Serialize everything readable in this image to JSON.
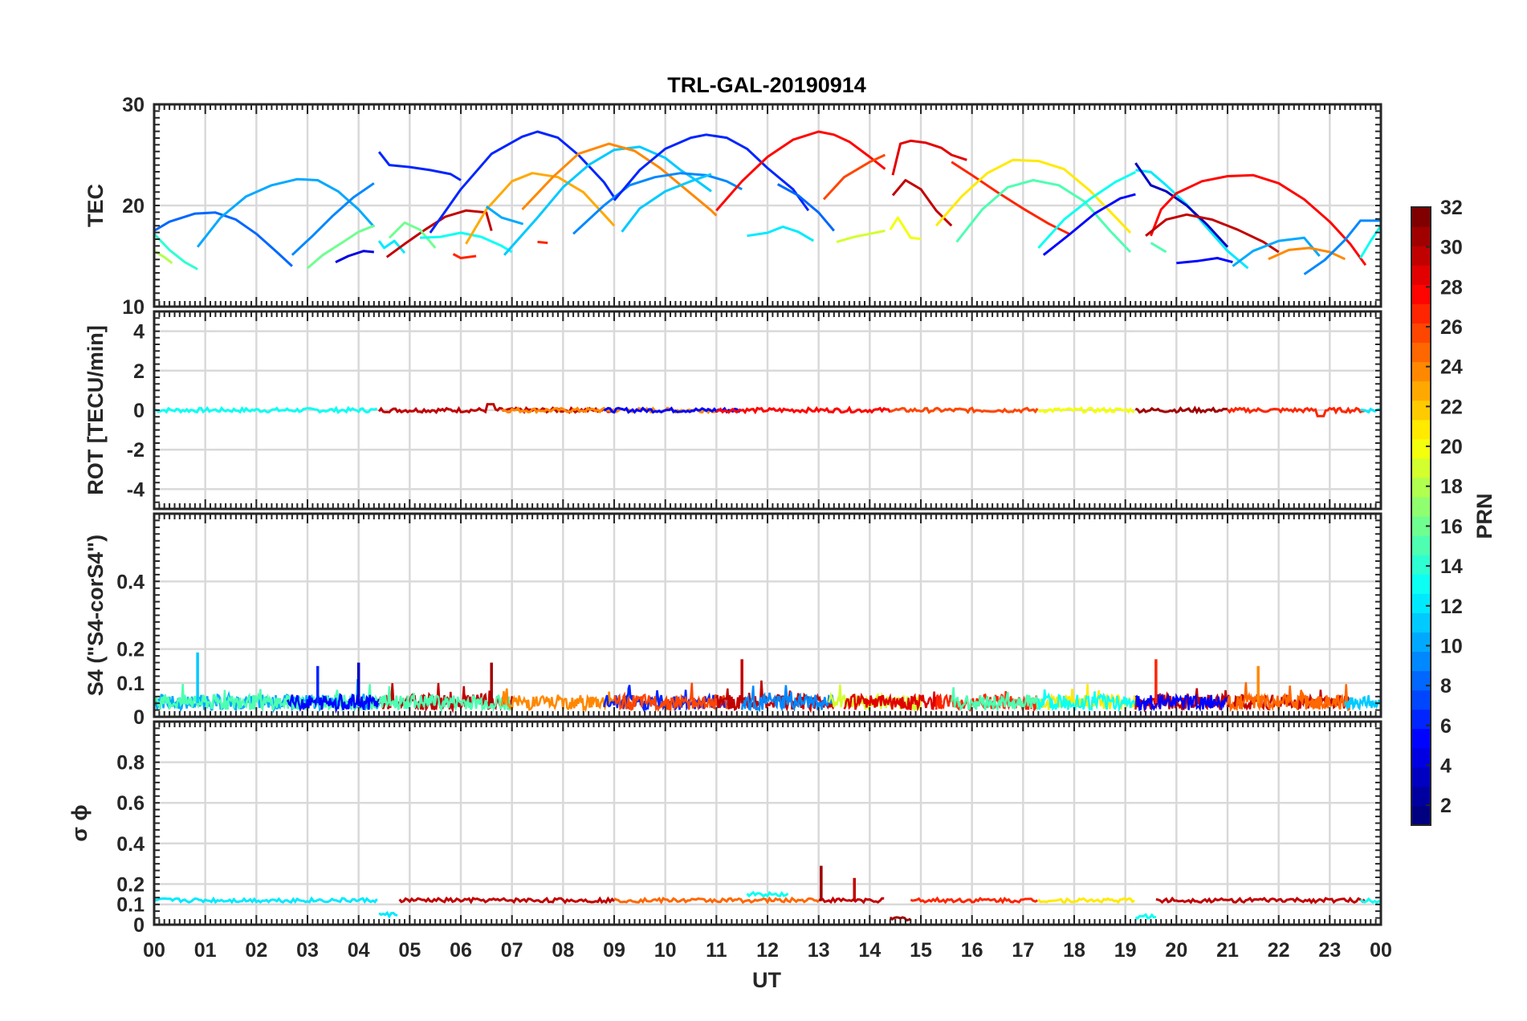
{
  "chart_data": {
    "title": "TRL-GAL-20190914",
    "type": "line",
    "xlabel": "UT",
    "x_ticks": [
      "00",
      "01",
      "02",
      "03",
      "04",
      "05",
      "06",
      "07",
      "08",
      "09",
      "10",
      "11",
      "12",
      "13",
      "14",
      "15",
      "16",
      "17",
      "18",
      "19",
      "20",
      "21",
      "22",
      "23",
      "00"
    ],
    "xlim": [
      0,
      24
    ],
    "colorbar": {
      "label": "PRN",
      "range": [
        1,
        32
      ],
      "ticks": [
        "2",
        "4",
        "6",
        "8",
        "10",
        "12",
        "14",
        "16",
        "18",
        "20",
        "22",
        "24",
        "26",
        "28",
        "30",
        "32"
      ]
    },
    "panels": [
      {
        "id": "tec",
        "ylabel": "TEC",
        "ylim": [
          10,
          30
        ],
        "yticks": [
          "10",
          "20",
          "30"
        ],
        "series": [
          {
            "prn": 8,
            "x": [
              0.0,
              0.3,
              0.8,
              1.2,
              1.6,
              2.0,
              2.4,
              2.7
            ],
            "y": [
              17.5,
              18.4,
              19.2,
              19.3,
              18.6,
              17.2,
              15.4,
              14.0
            ]
          },
          {
            "prn": 18,
            "x": [
              0.0,
              0.2,
              0.35
            ],
            "y": [
              15.5,
              14.9,
              14.3
            ]
          },
          {
            "prn": 14,
            "x": [
              0.0,
              0.3,
              0.6,
              0.85
            ],
            "y": [
              17.2,
              15.6,
              14.4,
              13.7
            ]
          },
          {
            "prn": 10,
            "x": [
              0.85,
              1.3,
              1.8,
              2.3,
              2.8,
              3.2,
              3.6,
              4.0,
              4.3
            ],
            "y": [
              15.9,
              18.8,
              20.9,
              22.0,
              22.6,
              22.5,
              21.4,
              19.6,
              17.9
            ]
          },
          {
            "prn": 9,
            "x": [
              2.7,
              3.1,
              3.5,
              3.9,
              4.3
            ],
            "y": [
              15.1,
              17.0,
              19.0,
              20.8,
              22.2
            ]
          },
          {
            "prn": 16,
            "x": [
              3.0,
              3.3,
              3.7,
              4.0,
              4.3
            ],
            "y": [
              13.8,
              15.1,
              16.4,
              17.4,
              18.0
            ]
          },
          {
            "prn": 4,
            "x": [
              3.55,
              3.8,
              4.1,
              4.3
            ],
            "y": [
              14.4,
              15.0,
              15.5,
              15.4
            ]
          },
          {
            "prn": 6,
            "x": [
              4.4,
              4.6,
              5.0,
              5.4,
              5.8,
              6.0
            ],
            "y": [
              25.3,
              24.0,
              23.8,
              23.5,
              23.1,
              22.5
            ]
          },
          {
            "prn": 12,
            "x": [
              4.4,
              4.5,
              4.7,
              4.9
            ],
            "y": [
              16.5,
              15.8,
              16.5,
              15.3
            ]
          },
          {
            "prn": 30,
            "x": [
              4.55,
              4.9,
              5.3,
              5.7,
              6.1,
              6.5,
              6.6
            ],
            "y": [
              14.9,
              16.2,
              17.6,
              18.9,
              19.5,
              19.3,
              17.5
            ]
          },
          {
            "prn": 16,
            "x": [
              4.6,
              4.9,
              5.2,
              5.5
            ],
            "y": [
              16.8,
              18.3,
              17.6,
              15.8
            ]
          },
          {
            "prn": 13,
            "x": [
              5.2,
              5.6,
              6.0,
              6.4,
              6.8,
              7.0
            ],
            "y": [
              16.8,
              16.9,
              17.3,
              16.9,
              16.0,
              15.4
            ]
          },
          {
            "prn": 6,
            "x": [
              5.4,
              6.0,
              6.6,
              7.2,
              7.5,
              7.9,
              8.3,
              8.8,
              9.0
            ],
            "y": [
              17.3,
              21.6,
              25.1,
              26.8,
              27.3,
              26.7,
              25.0,
              22.3,
              20.8
            ]
          },
          {
            "prn": 27,
            "x": [
              5.85,
              6.0,
              6.3
            ],
            "y": [
              15.2,
              14.8,
              15.0
            ]
          },
          {
            "prn": 23,
            "x": [
              6.1,
              6.5,
              7.0,
              7.4,
              7.9,
              8.4,
              8.8,
              9.0
            ],
            "y": [
              16.2,
              19.6,
              22.4,
              23.2,
              22.8,
              21.3,
              19.1,
              18.0
            ]
          },
          {
            "prn": 10,
            "x": [
              6.5,
              6.8,
              7.2,
              7.0
            ],
            "y": [
              19.9,
              18.8,
              18.2,
              18.5
            ]
          },
          {
            "prn": 11,
            "x": [
              6.85,
              7.5,
              8.0,
              8.5,
              9.0,
              9.5,
              10.0,
              10.3,
              10.6,
              10.9
            ],
            "y": [
              15.1,
              18.8,
              21.8,
              24.0,
              25.5,
              25.8,
              24.7,
              23.5,
              22.5,
              21.4
            ]
          },
          {
            "prn": 27,
            "x": [
              7.5,
              7.7
            ],
            "y": [
              16.4,
              16.3
            ]
          },
          {
            "prn": 24,
            "x": [
              7.2,
              7.8,
              8.3,
              8.9,
              9.4,
              9.9,
              10.4,
              10.9,
              11.0
            ],
            "y": [
              19.6,
              22.8,
              25.1,
              26.1,
              25.4,
              23.7,
              21.6,
              19.5,
              19.0
            ]
          },
          {
            "prn": 9,
            "x": [
              8.2,
              8.8,
              9.3,
              9.8,
              10.3,
              10.8,
              11.2,
              11.5
            ],
            "y": [
              17.2,
              20.0,
              22.0,
              22.8,
              23.2,
              23.0,
              22.4,
              21.6
            ]
          },
          {
            "prn": 6,
            "x": [
              9.0,
              9.5,
              10.0,
              10.5,
              10.8,
              11.2,
              11.6,
              12.0,
              12.5,
              12.8
            ],
            "y": [
              20.5,
              23.5,
              25.6,
              26.7,
              27.0,
              26.7,
              25.6,
              23.7,
              21.6,
              19.5
            ]
          },
          {
            "prn": 11,
            "x": [
              9.15,
              9.5,
              10.0,
              10.5,
              10.9
            ],
            "y": [
              17.4,
              19.7,
              21.4,
              22.4,
              23.1
            ]
          },
          {
            "prn": 28,
            "x": [
              11.0,
              11.5,
              12.0,
              12.5,
              13.0,
              13.3,
              13.6,
              14.0,
              14.3
            ],
            "y": [
              19.5,
              22.4,
              24.8,
              26.5,
              27.3,
              27.0,
              26.3,
              24.8,
              23.6
            ]
          },
          {
            "prn": 8,
            "x": [
              12.2,
              12.6,
              13.0,
              13.3
            ],
            "y": [
              22.1,
              21.0,
              19.3,
              17.5
            ]
          },
          {
            "prn": 12,
            "x": [
              11.6,
              12.0,
              12.3,
              12.6,
              12.9
            ],
            "y": [
              17.0,
              17.3,
              17.9,
              17.4,
              16.5
            ]
          },
          {
            "prn": 26,
            "x": [
              13.1,
              13.5,
              14.0,
              14.3
            ],
            "y": [
              20.6,
              22.8,
              24.3,
              25.0
            ]
          },
          {
            "prn": 19,
            "x": [
              13.35,
              13.7,
              14.0,
              14.3
            ],
            "y": [
              16.4,
              16.9,
              17.2,
              17.5
            ]
          },
          {
            "prn": 20,
            "x": [
              14.4,
              14.55,
              14.8,
              15.0
            ],
            "y": [
              17.6,
              18.8,
              16.8,
              16.7
            ]
          },
          {
            "prn": 29,
            "x": [
              14.45,
              14.6,
              14.8,
              15.1,
              15.4,
              15.6,
              15.9
            ],
            "y": [
              23.0,
              26.1,
              26.4,
              26.2,
              25.7,
              25.0,
              24.5
            ]
          },
          {
            "prn": 30,
            "x": [
              14.45,
              14.7,
              15.0,
              15.3,
              15.6
            ],
            "y": [
              21.0,
              22.5,
              21.6,
              19.5,
              18.0
            ]
          },
          {
            "prn": 27,
            "x": [
              15.6,
              16.0,
              16.5,
              17.0,
              17.5,
              17.9
            ],
            "y": [
              24.3,
              23.0,
              21.3,
              19.7,
              18.2,
              17.2
            ]
          },
          {
            "prn": 21,
            "x": [
              15.3,
              15.8,
              16.3,
              16.8,
              17.3,
              17.8,
              18.3,
              18.8,
              19.1
            ],
            "y": [
              18.0,
              20.9,
              23.2,
              24.5,
              24.4,
              23.6,
              21.5,
              18.9,
              17.3
            ]
          },
          {
            "prn": 15,
            "x": [
              15.7,
              16.2,
              16.7,
              17.2,
              17.7,
              18.2,
              18.7,
              19.1
            ],
            "y": [
              16.4,
              19.6,
              21.8,
              22.5,
              22.0,
              20.4,
              17.5,
              15.4
            ]
          },
          {
            "prn": 13,
            "x": [
              17.3,
              17.8,
              18.3,
              18.8,
              19.2
            ],
            "y": [
              15.8,
              18.6,
              20.6,
              22.3,
              23.3
            ]
          },
          {
            "prn": 5,
            "x": [
              17.4,
              17.9,
              18.4,
              18.9,
              19.2
            ],
            "y": [
              15.1,
              17.1,
              19.2,
              20.7,
              21.1
            ]
          },
          {
            "prn": 12,
            "x": [
              19.2,
              19.5,
              19.8,
              20.2,
              20.6,
              21.0,
              21.4
            ],
            "y": [
              23.5,
              23.3,
              22.0,
              20.1,
              17.8,
              15.5,
              13.8
            ]
          },
          {
            "prn": 3,
            "x": [
              19.2,
              19.5,
              19.8,
              20.2,
              20.6,
              21.0
            ],
            "y": [
              24.2,
              22.0,
              21.4,
              20.0,
              18.1,
              15.9
            ]
          },
          {
            "prn": 28,
            "x": [
              19.5,
              19.7,
              20.0,
              20.5,
              21.0,
              21.5,
              22.0,
              22.5,
              23.0,
              23.4,
              23.7
            ],
            "y": [
              17.0,
              19.6,
              21.2,
              22.4,
              22.9,
              23.0,
              22.2,
              20.6,
              18.4,
              16.2,
              14.1
            ]
          },
          {
            "prn": 30,
            "x": [
              19.4,
              19.8,
              20.2,
              20.7,
              21.2,
              21.7,
              22.0
            ],
            "y": [
              17.0,
              18.6,
              19.1,
              18.6,
              17.6,
              16.4,
              15.4
            ]
          },
          {
            "prn": 15,
            "x": [
              19.5,
              19.8
            ],
            "y": [
              16.3,
              15.4
            ]
          },
          {
            "prn": 5,
            "x": [
              20.0,
              20.4,
              20.8,
              21.1
            ],
            "y": [
              14.3,
              14.5,
              14.8,
              14.4
            ]
          },
          {
            "prn": 10,
            "x": [
              21.1,
              21.5,
              22.0,
              22.5,
              22.8
            ],
            "y": [
              14.0,
              15.5,
              16.5,
              16.8,
              15.0
            ]
          },
          {
            "prn": 24,
            "x": [
              21.8,
              22.2,
              22.6,
              23.0,
              23.3
            ],
            "y": [
              14.7,
              15.6,
              15.8,
              15.4,
              14.7
            ]
          },
          {
            "prn": 9,
            "x": [
              22.5,
              22.9,
              23.3,
              23.6,
              24.0
            ],
            "y": [
              13.2,
              14.6,
              16.6,
              18.5,
              18.5
            ]
          },
          {
            "prn": 13,
            "x": [
              23.6,
              23.8,
              24.0
            ],
            "y": [
              14.8,
              16.5,
              18.0
            ]
          }
        ]
      },
      {
        "id": "rot",
        "ylabel": "ROT [TECU/min]",
        "ylim": [
          -5,
          5
        ],
        "yticks": [
          "-4",
          "-2",
          "0",
          "2",
          "4"
        ],
        "note": "all PRN traces lie near 0 TECU/min with fluctuations below ±0.3"
      },
      {
        "id": "s4",
        "ylabel": "S4 (\"S4-corS4\")",
        "ylim": [
          0,
          0.6
        ],
        "yticks": [
          "0",
          "0.1",
          "0.2",
          "0.4"
        ],
        "baseline_range": [
          0.01,
          0.06
        ],
        "peaks": [
          {
            "prn": 11,
            "x": 0.85,
            "y": 0.19
          },
          {
            "prn": 6,
            "x": 3.2,
            "y": 0.15
          },
          {
            "prn": 3,
            "x": 4.0,
            "y": 0.16
          },
          {
            "prn": 31,
            "x": 6.6,
            "y": 0.16
          },
          {
            "prn": 30,
            "x": 11.5,
            "y": 0.17
          },
          {
            "prn": 27,
            "x": 19.6,
            "y": 0.17
          },
          {
            "prn": 24,
            "x": 21.6,
            "y": 0.15
          }
        ]
      },
      {
        "id": "sigma",
        "ylabel": "σ ϕ",
        "ylim": [
          0,
          1
        ],
        "yticks": [
          "0",
          "0.1",
          "0.2",
          "0.4",
          "0.6",
          "0.8"
        ],
        "baseline": 0.12,
        "peaks": [
          {
            "prn": 31,
            "x": 13.05,
            "y": 0.29
          },
          {
            "prn": 30,
            "x": 13.7,
            "y": 0.23
          }
        ]
      }
    ]
  }
}
